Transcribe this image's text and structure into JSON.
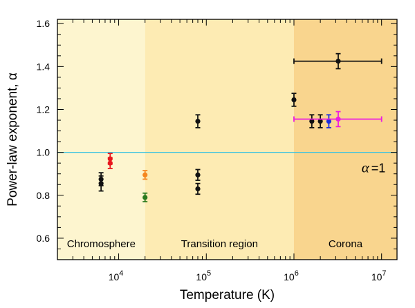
{
  "chart_data": {
    "type": "scatter",
    "xlabel": "Temperature (K)",
    "ylabel": "Power-law exponent, α",
    "xscale": "log",
    "xlim": [
      2000,
      15000000
    ],
    "ylim": [
      0.5,
      1.62
    ],
    "grid": false,
    "x_ticks": [
      {
        "value": 10000,
        "base": "10",
        "exp": "4"
      },
      {
        "value": 100000,
        "base": "10",
        "exp": "5"
      },
      {
        "value": 1000000,
        "base": "10",
        "exp": "6"
      },
      {
        "value": 10000000,
        "base": "10",
        "exp": "7"
      }
    ],
    "y_ticks": [
      "0.6",
      "0.8",
      "1.0",
      "1.2",
      "1.4",
      "1.6"
    ],
    "regions": [
      {
        "label": "Chromosphere",
        "x_range": [
          2000,
          20000
        ],
        "color": "#fdf5cf"
      },
      {
        "label": "Transition region",
        "x_range": [
          20000,
          1000000
        ],
        "color": "#fdebb3"
      },
      {
        "label": "Corona",
        "x_range": [
          1000000,
          15000000
        ],
        "color": "#f9d58e"
      }
    ],
    "reference_line": {
      "y": 1.0,
      "label": "α =1",
      "label_parts": {
        "symbol": "α",
        "rest": "=1"
      },
      "color": "#3cc3e0"
    },
    "points": [
      {
        "x": 6300,
        "y": 0.875,
        "yerr": 0.03,
        "color": "#111111"
      },
      {
        "x": 6300,
        "y": 0.855,
        "yerr": 0.035,
        "color": "#111111"
      },
      {
        "x": 8000,
        "y": 0.97,
        "yerr": 0.025,
        "color": "#e8161d"
      },
      {
        "x": 8000,
        "y": 0.95,
        "yerr": 0.025,
        "color": "#e8161d"
      },
      {
        "x": 20000,
        "y": 0.895,
        "yerr": 0.02,
        "color": "#f5861f"
      },
      {
        "x": 20000,
        "y": 0.79,
        "yerr": 0.02,
        "color": "#2a7a1e"
      },
      {
        "x": 80000,
        "y": 1.145,
        "yerr": 0.03,
        "color": "#111111"
      },
      {
        "x": 80000,
        "y": 0.895,
        "yerr": 0.025,
        "color": "#111111"
      },
      {
        "x": 80000,
        "y": 0.83,
        "yerr": 0.025,
        "color": "#111111"
      },
      {
        "x": 1000000,
        "y": 1.245,
        "yerr": 0.03,
        "color": "#111111"
      },
      {
        "x": 1600000,
        "y": 1.145,
        "yerr": 0.03,
        "color": "#111111"
      },
      {
        "x": 2000000,
        "y": 1.145,
        "yerr": 0.03,
        "color": "#111111"
      },
      {
        "x": 2500000,
        "y": 1.145,
        "yerr": 0.03,
        "color": "#1b2ee0"
      },
      {
        "x": 3200000,
        "y": 1.155,
        "yerr": 0.035,
        "color": "#ec1ce0",
        "xerr": [
          1000000,
          10000000
        ]
      },
      {
        "x": 3200000,
        "y": 1.425,
        "yerr": 0.035,
        "color": "#111111",
        "xerr": [
          1000000,
          10000000
        ]
      }
    ]
  }
}
